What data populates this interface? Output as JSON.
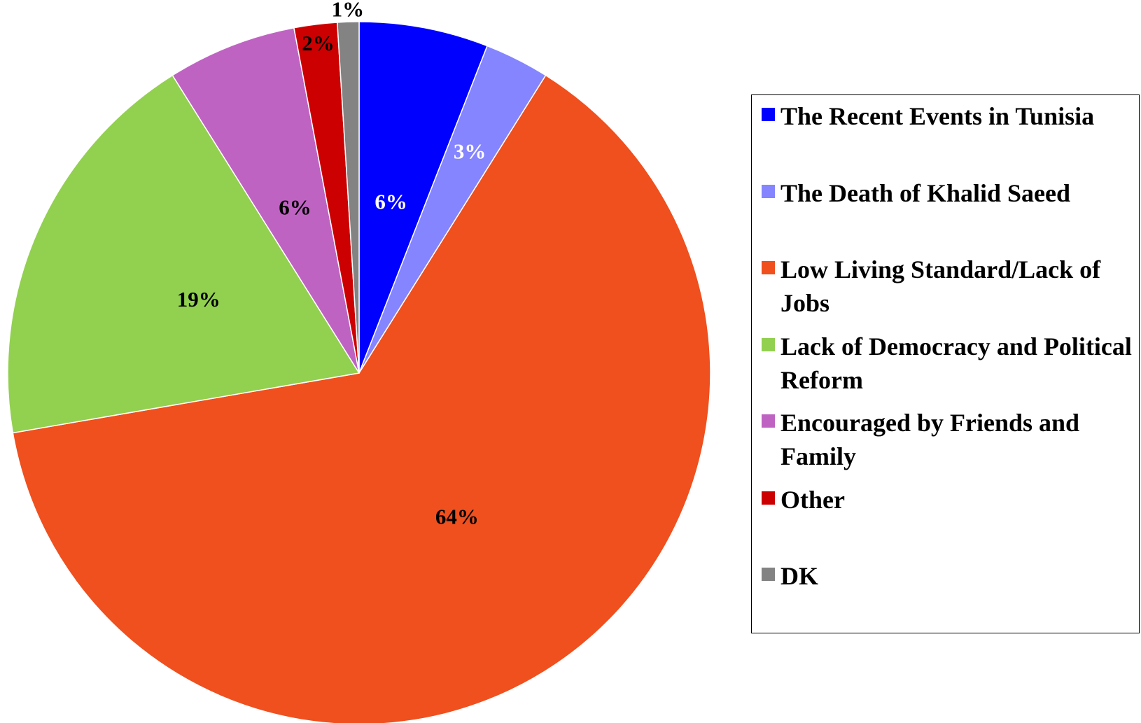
{
  "chart_data": {
    "type": "pie",
    "categories": [
      "The Recent Events in Tunisia",
      "The Death of Khalid Saeed",
      "Low Living Standard/Lack of Jobs",
      "Lack of Democracy and Political Reform",
      "Encouraged by Friends and Family",
      "Other",
      "DK"
    ],
    "values": [
      6,
      3,
      64,
      19,
      6,
      2,
      1
    ],
    "value_labels": [
      "6%",
      "3%",
      "64%",
      "19%",
      "6%",
      "2%",
      "1%"
    ],
    "colors": [
      "#0000ff",
      "#8585ff",
      "#f04f1e",
      "#92d050",
      "#bf63c3",
      "#cc0000",
      "#838383"
    ],
    "legend": "right"
  }
}
